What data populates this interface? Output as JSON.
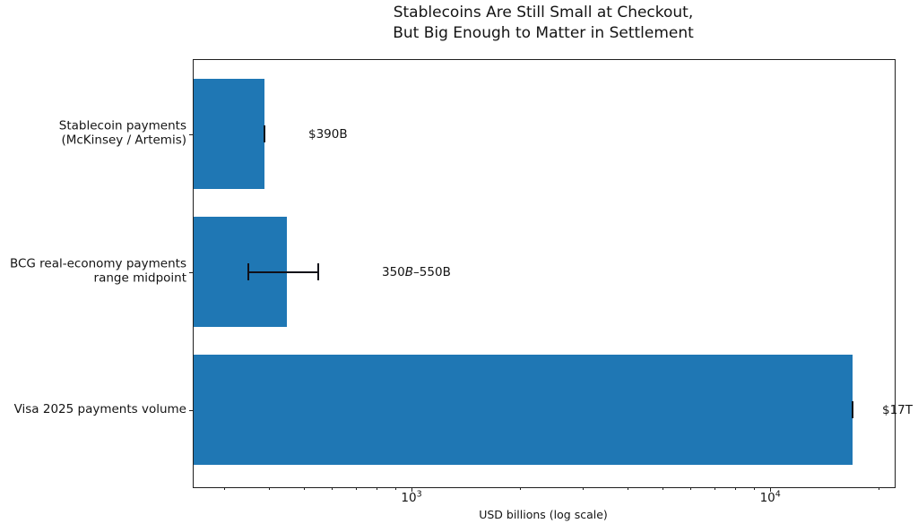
{
  "title": {
    "line1": "Stablecoins Are Still Small at Checkout,",
    "line2": "But Big Enough to Matter in Settlement"
  },
  "x_axis": {
    "label": "USD billions (log scale)",
    "scale": "log",
    "xlim": [
      247,
      22230
    ],
    "major_ticks": [
      {
        "label_base": "10",
        "label_exp": "3",
        "value": 1000
      },
      {
        "label_base": "10",
        "label_exp": "4",
        "value": 10000
      }
    ],
    "minor_tick_values": [
      300,
      400,
      500,
      600,
      700,
      800,
      900,
      2000,
      3000,
      4000,
      5000,
      6000,
      7000,
      8000,
      9000,
      20000
    ]
  },
  "bars": [
    {
      "label_line1": "Stablecoin payments",
      "label_line2": "(McKinsey / Artemis)",
      "value": 390,
      "err_low": 390,
      "err_high": 390,
      "annotation": "$390B"
    },
    {
      "label_line1": "BCG real-economy payments",
      "label_line2": "range midpoint",
      "value": 450,
      "err_low": 350,
      "err_high": 550,
      "annotation_prefix": "350",
      "annotation_italic": "B",
      "annotation_suffix": "–550B"
    },
    {
      "label_line1": "Visa 2025 payments volume",
      "label_line2": "",
      "value": 17000,
      "err_low": 17000,
      "err_high": 17000,
      "annotation": "$17T"
    }
  ],
  "colors": {
    "bar": "#1f77b4",
    "error_bar": "#101018",
    "text": "#141414",
    "spine": "#1f1f1f"
  },
  "chart_data": {
    "type": "bar",
    "orientation": "horizontal",
    "title": "Stablecoins Are Still Small at Checkout, But Big Enough to Matter in Settlement",
    "xlabel": "USD billions (log scale)",
    "xscale": "log",
    "xlim": [
      247,
      22230
    ],
    "categories": [
      "Stablecoin payments (McKinsey / Artemis)",
      "BCG real-economy payments range midpoint",
      "Visa 2025 payments volume"
    ],
    "values": [
      390,
      450,
      17000
    ],
    "error_ranges": [
      [
        390,
        390
      ],
      [
        350,
        550
      ],
      [
        17000,
        17000
      ]
    ],
    "annotations": [
      "$390B",
      "350B–550B",
      "$17T"
    ],
    "bar_color": "#1f77b4",
    "x_major_tick_values": [
      1000,
      10000
    ],
    "x_major_tick_labels": [
      "10³",
      "10⁴"
    ],
    "grid": false,
    "legend": false
  }
}
